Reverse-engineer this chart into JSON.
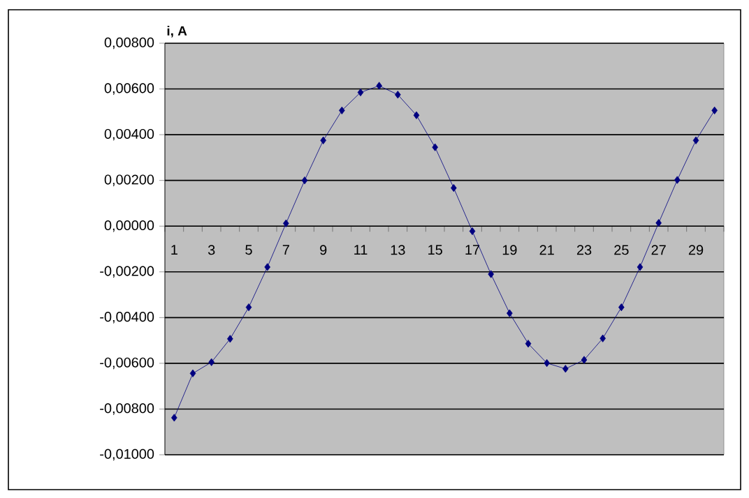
{
  "chart_data": {
    "type": "line",
    "ylabel": "i, A",
    "categories": [
      "1",
      null,
      "3",
      null,
      "5",
      null,
      "7",
      null,
      "9",
      null,
      "11",
      null,
      "13",
      null,
      "15",
      null,
      "17",
      null,
      "19",
      null,
      "21",
      null,
      "23",
      null,
      "25",
      null,
      "27",
      null,
      "29",
      null
    ],
    "series": [
      {
        "color": "#000080",
        "values": [
          -0.00838,
          -0.00644,
          -0.00595,
          -0.00493,
          -0.00355,
          -0.00179,
          0.00012,
          0.002,
          0.00375,
          0.00506,
          0.00585,
          0.00614,
          0.00575,
          0.00485,
          0.00345,
          0.00167,
          -0.00022,
          -0.0021,
          -0.00381,
          -0.00514,
          -0.00599,
          -0.00624,
          -0.00585,
          -0.00491,
          -0.00355,
          -0.00179,
          0.00014,
          0.00202,
          0.00375,
          0.00506
        ]
      }
    ],
    "ylim": [
      -0.01,
      0.008
    ],
    "yticks": [
      {
        "value": -0.01,
        "label": "-0,01000"
      },
      {
        "value": -0.008,
        "label": "-0,00800"
      },
      {
        "value": -0.006,
        "label": "-0,00600"
      },
      {
        "value": -0.004,
        "label": "-0,00400"
      },
      {
        "value": -0.002,
        "label": "-0,00200"
      },
      {
        "value": 0,
        "label": "0,00000"
      },
      {
        "value": 0.002,
        "label": "0,00200"
      },
      {
        "value": 0.004,
        "label": "0,00400"
      },
      {
        "value": 0.006,
        "label": "0,00600"
      },
      {
        "value": 0.008,
        "label": "0,00800"
      }
    ],
    "grid": "y",
    "marker": "diamond",
    "line_style": "solid"
  }
}
